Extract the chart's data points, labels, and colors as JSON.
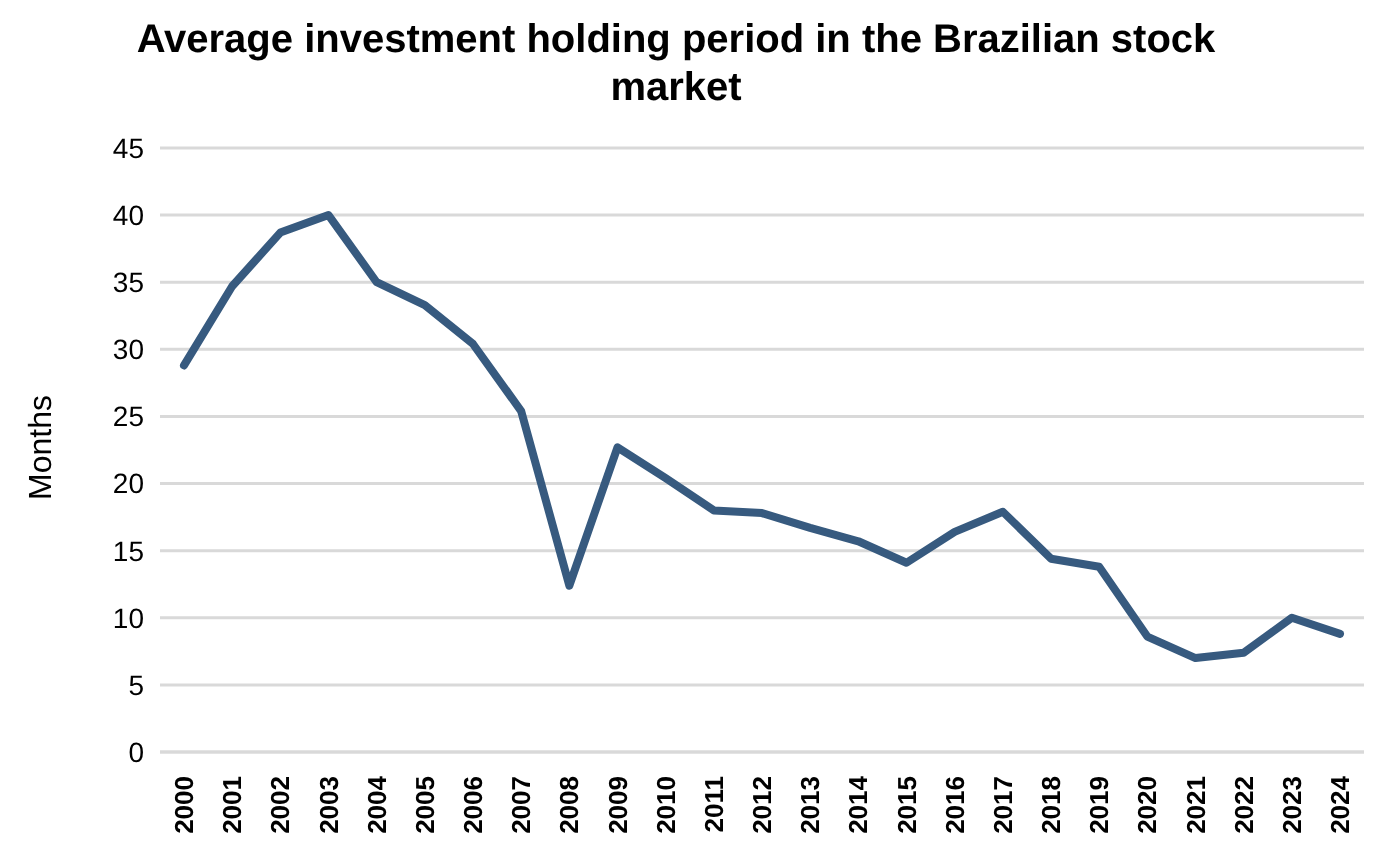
{
  "chart_data": {
    "type": "line",
    "title": "Average investment holding period in the Brazilian stock market",
    "ylabel": "Months",
    "categories": [
      "2000",
      "2001",
      "2002",
      "2003",
      "2004",
      "2005",
      "2006",
      "2007",
      "2008",
      "2009",
      "2010",
      "2011",
      "2012",
      "2013",
      "2014",
      "2015",
      "2016",
      "2017",
      "2018",
      "2019",
      "2020",
      "2021",
      "2022",
      "2023",
      "2024"
    ],
    "series": [
      {
        "color": "#375a7f",
        "values": [
          28.8,
          34.7,
          38.7,
          40,
          35,
          33.3,
          30.4,
          25.4,
          12.4,
          22.7,
          20.4,
          18,
          17.8,
          16.7,
          15.7,
          14.1,
          16.4,
          17.9,
          14.4,
          13.8,
          8.6,
          7,
          7.4,
          10,
          8.8
        ]
      }
    ],
    "ylim": [
      0,
      45
    ],
    "yticks": [
      0,
      5,
      10,
      15,
      20,
      25,
      30,
      35,
      40,
      45
    ],
    "grid": "y",
    "legend": false,
    "marker": "none",
    "line_style": "solid"
  }
}
